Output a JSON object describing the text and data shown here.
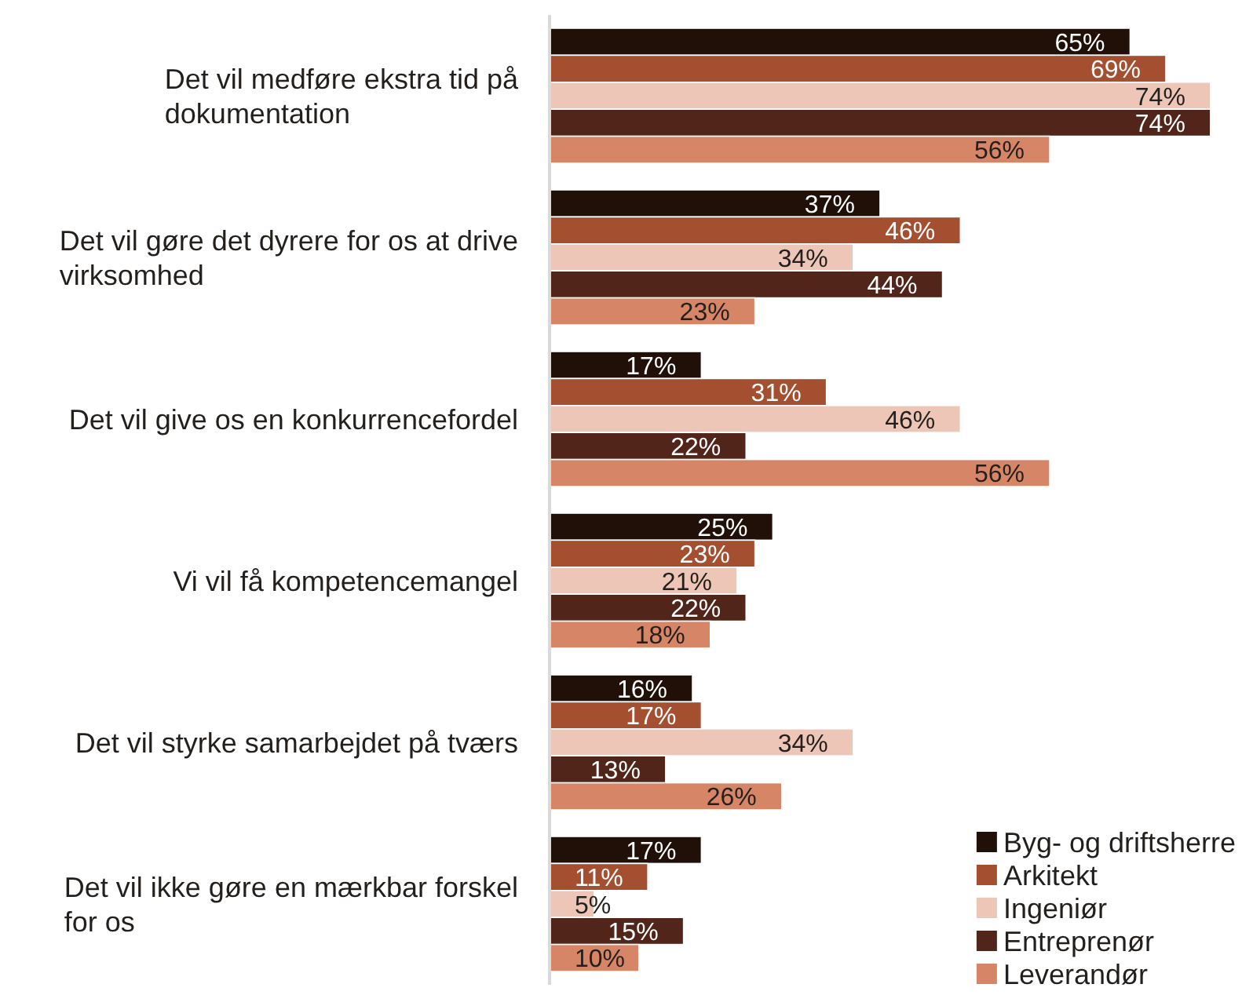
{
  "chart_data": {
    "type": "bar",
    "orientation": "horizontal",
    "categories": [
      "Det vil medføre ekstra tid på dokumentation",
      "Det vil gøre det dyrere for os at drive virksomhed",
      "Det vil give os en konkurrencefordel",
      "Vi vil få kompetencemangel",
      "Det vil styrke samarbejdet på tværs",
      "Det vil ikke gøre en mærkbar forskel for os"
    ],
    "series": [
      {
        "name": "Byg- og driftsherre",
        "color": "#201008",
        "values": [
          65,
          37,
          17,
          25,
          16,
          17
        ],
        "value_labels": [
          "65%",
          "37%",
          "17%",
          "25%",
          "16%",
          "17%"
        ]
      },
      {
        "name": "Arkitekt",
        "color": "#a54f31",
        "values": [
          69,
          46,
          31,
          23,
          17,
          11
        ],
        "value_labels": [
          "69%",
          "46%",
          "31%",
          "23%",
          "17%",
          "11%"
        ]
      },
      {
        "name": "Ingeniør",
        "color": "#edc6b8",
        "values": [
          74,
          34,
          46,
          21,
          34,
          5
        ],
        "value_labels": [
          "74%",
          "34%",
          "46%",
          "21%",
          "34%",
          "5%"
        ]
      },
      {
        "name": "Entreprenør",
        "color": "#52251a",
        "values": [
          74,
          44,
          22,
          22,
          13,
          15
        ],
        "value_labels": [
          "74%",
          "44%",
          "22%",
          "22%",
          "13%",
          "15%"
        ]
      },
      {
        "name": "Leverandør",
        "color": "#d68567",
        "values": [
          56,
          23,
          56,
          18,
          26,
          10
        ],
        "value_labels": [
          "56%",
          "23%",
          "56%",
          "18%",
          "26%",
          "10%"
        ]
      }
    ],
    "xlim": [
      0,
      77
    ],
    "tick_labels": "y",
    "legend": "bottom right"
  }
}
